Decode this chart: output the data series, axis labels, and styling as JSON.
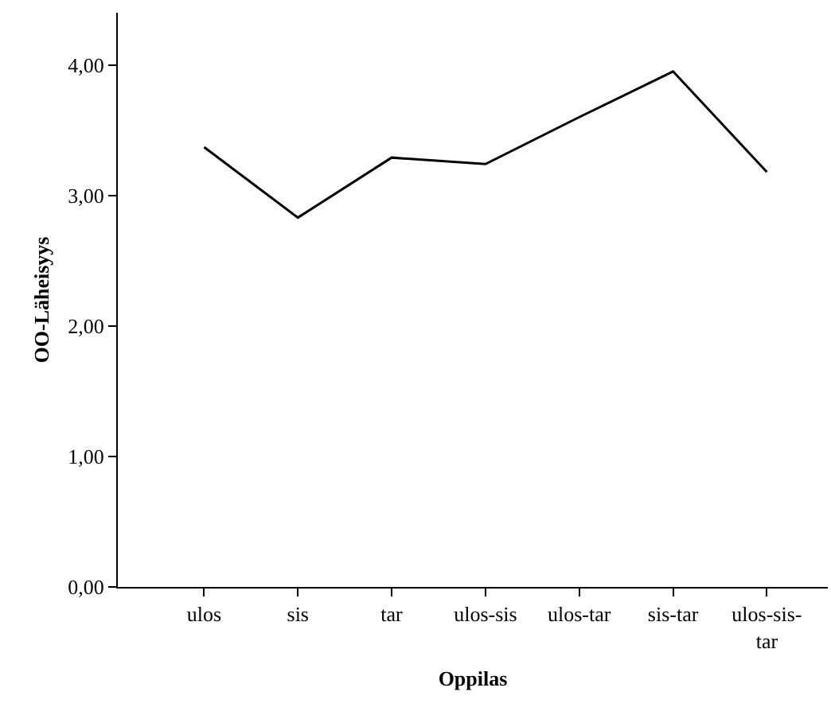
{
  "chart_data": {
    "type": "line",
    "xlabel": "Oppilas",
    "ylabel": "OO-Läheisyys",
    "categories": [
      "ulos",
      "sis",
      "tar",
      "ulos-sis",
      "ulos-tar",
      "sis-tar",
      "ulos-sis-tar"
    ],
    "series": [
      {
        "color": "#000000",
        "values": [
          3.37,
          2.83,
          3.29,
          3.24,
          3.6,
          3.95,
          3.18
        ]
      }
    ],
    "ylim": [
      0,
      4.4
    ],
    "yticks": [
      {
        "value": 0,
        "label": "0,00"
      },
      {
        "value": 1,
        "label": "1,00"
      },
      {
        "value": 2,
        "label": "2,00"
      },
      {
        "value": 3,
        "label": "3,00"
      },
      {
        "value": 4,
        "label": "4,00"
      }
    ],
    "grid": false,
    "marker": "none",
    "line_style": "solid"
  }
}
